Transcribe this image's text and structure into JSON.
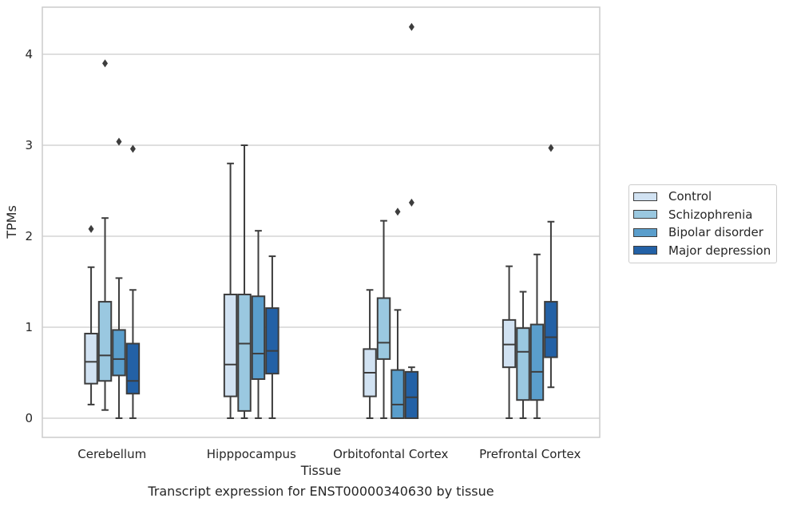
{
  "chart_data": {
    "type": "box",
    "xlabel": "Tissue",
    "ylabel": "TPMs",
    "caption": "Transcript expression for ENST00000340630 by tissue",
    "ylim": [
      -0.21,
      4.52
    ],
    "yticks": [
      0,
      1,
      2,
      3,
      4
    ],
    "grid": true,
    "legend_position": "right",
    "categories": [
      "Cerebellum",
      "Hipppocampus",
      "Orbitofontal Cortex",
      "Prefrontal Cortex"
    ],
    "series": [
      {
        "name": "Control",
        "color": "#d1e2f2",
        "boxes": [
          {
            "whislo": 0.15,
            "q1": 0.38,
            "med": 0.62,
            "q3": 0.93,
            "whishi": 1.66,
            "fliers": [
              2.08
            ]
          },
          {
            "whislo": 0.0,
            "q1": 0.24,
            "med": 0.59,
            "q3": 1.36,
            "whishi": 2.8,
            "fliers": []
          },
          {
            "whislo": 0.0,
            "q1": 0.24,
            "med": 0.5,
            "q3": 0.76,
            "whishi": 1.41,
            "fliers": []
          },
          {
            "whislo": 0.0,
            "q1": 0.56,
            "med": 0.81,
            "q3": 1.08,
            "whishi": 1.67,
            "fliers": []
          }
        ]
      },
      {
        "name": "Schizophrenia",
        "color": "#9ac8e0",
        "boxes": [
          {
            "whislo": 0.09,
            "q1": 0.41,
            "med": 0.69,
            "q3": 1.28,
            "whishi": 2.2,
            "fliers": [
              3.9
            ]
          },
          {
            "whislo": 0.0,
            "q1": 0.08,
            "med": 0.82,
            "q3": 1.36,
            "whishi": 3.0,
            "fliers": []
          },
          {
            "whislo": 0.0,
            "q1": 0.65,
            "med": 0.83,
            "q3": 1.32,
            "whishi": 2.17,
            "fliers": []
          },
          {
            "whislo": 0.0,
            "q1": 0.2,
            "med": 0.73,
            "q3": 0.99,
            "whishi": 1.39,
            "fliers": []
          }
        ]
      },
      {
        "name": "Bipolar disorder",
        "color": "#5a9ecc",
        "boxes": [
          {
            "whislo": 0.0,
            "q1": 0.47,
            "med": 0.65,
            "q3": 0.97,
            "whishi": 1.54,
            "fliers": [
              3.04
            ]
          },
          {
            "whislo": 0.0,
            "q1": 0.43,
            "med": 0.71,
            "q3": 1.34,
            "whishi": 2.06,
            "fliers": []
          },
          {
            "whislo": 0.0,
            "q1": 0.0,
            "med": 0.15,
            "q3": 0.53,
            "whishi": 1.19,
            "fliers": [
              2.27
            ]
          },
          {
            "whislo": 0.0,
            "q1": 0.2,
            "med": 0.51,
            "q3": 1.03,
            "whishi": 1.8,
            "fliers": []
          }
        ]
      },
      {
        "name": "Major depression",
        "color": "#2361a6",
        "boxes": [
          {
            "whislo": 0.0,
            "q1": 0.27,
            "med": 0.41,
            "q3": 0.82,
            "whishi": 1.41,
            "fliers": [
              2.96
            ]
          },
          {
            "whislo": 0.0,
            "q1": 0.49,
            "med": 0.74,
            "q3": 1.21,
            "whishi": 1.78,
            "fliers": []
          },
          {
            "whislo": 0.0,
            "q1": 0.0,
            "med": 0.23,
            "q3": 0.51,
            "whishi": 0.56,
            "fliers": [
              2.37,
              4.3
            ]
          },
          {
            "whislo": 0.34,
            "q1": 0.67,
            "med": 0.89,
            "q3": 1.28,
            "whishi": 2.16,
            "fliers": [
              2.97
            ]
          }
        ]
      }
    ]
  }
}
